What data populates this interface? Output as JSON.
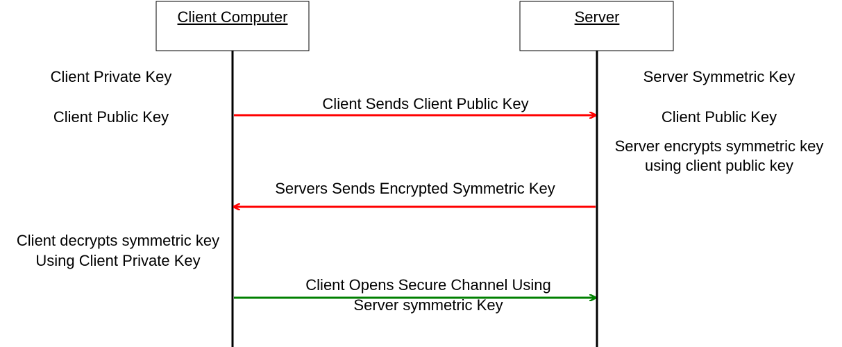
{
  "participants": [
    {
      "label": "Client Computer"
    },
    {
      "label": "Server"
    }
  ],
  "client_notes": [
    {
      "lines": [
        "Client Private Key"
      ]
    },
    {
      "lines": [
        "Client Public Key"
      ]
    },
    {
      "lines": [
        "Client decrypts symmetric key",
        "Using Client Private Key"
      ]
    }
  ],
  "server_notes": [
    {
      "lines": [
        "Server Symmetric Key"
      ]
    },
    {
      "lines": [
        "Client Public Key"
      ]
    },
    {
      "lines": [
        "Server encrypts symmetric key",
        "using client public key"
      ]
    }
  ],
  "messages": [
    {
      "lines": [
        "Client Sends Client Public Key"
      ]
    },
    {
      "lines": [
        "Servers Sends Encrypted Symmetric Key"
      ]
    },
    {
      "lines": [
        "Client Opens Secure Channel Using",
        "Server symmetric Key"
      ]
    }
  ]
}
